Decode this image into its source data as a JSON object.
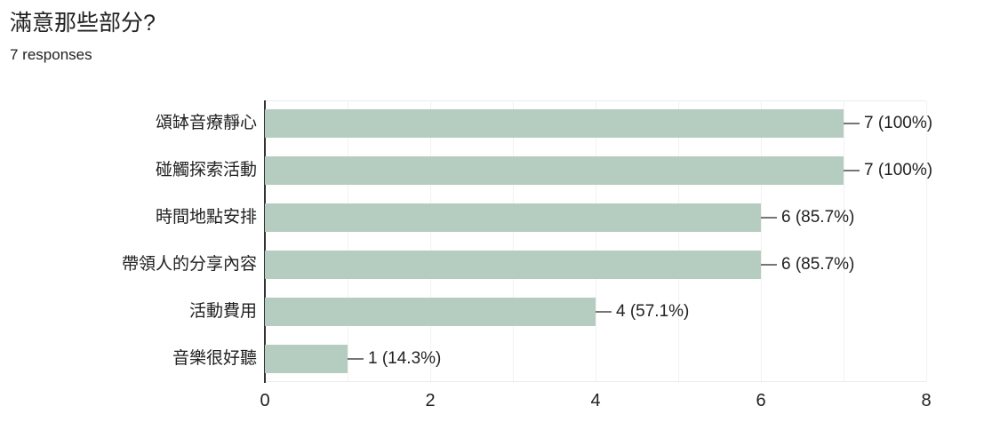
{
  "header": {
    "title": "滿意那些部分?",
    "responses": "7 responses"
  },
  "chart_data": {
    "type": "bar",
    "orientation": "horizontal",
    "title": "滿意那些部分?",
    "subtitle": "7 responses",
    "categories": [
      "頌缽音療靜心",
      "碰觸探索活動",
      "時間地點安排",
      "帶領人的分享內容",
      "活動費用",
      "音樂很好聽"
    ],
    "values": [
      7,
      7,
      6,
      6,
      4,
      1
    ],
    "value_labels": [
      "7 (100%)",
      "7 (100%)",
      "6 (85.7%)",
      "6 (85.7%)",
      "4 (57.1%)",
      "1 (14.3%)"
    ],
    "x_ticks": [
      0,
      2,
      4,
      6,
      8
    ],
    "xlim": [
      0,
      8
    ],
    "grid": true,
    "gridline_step": 1,
    "legend": "none",
    "colors": {
      "bar": "#b5ccc1",
      "axis_line": "#333333",
      "gridline": "#f1f1f1",
      "leader_line": "#757575",
      "text": "#212121"
    }
  }
}
